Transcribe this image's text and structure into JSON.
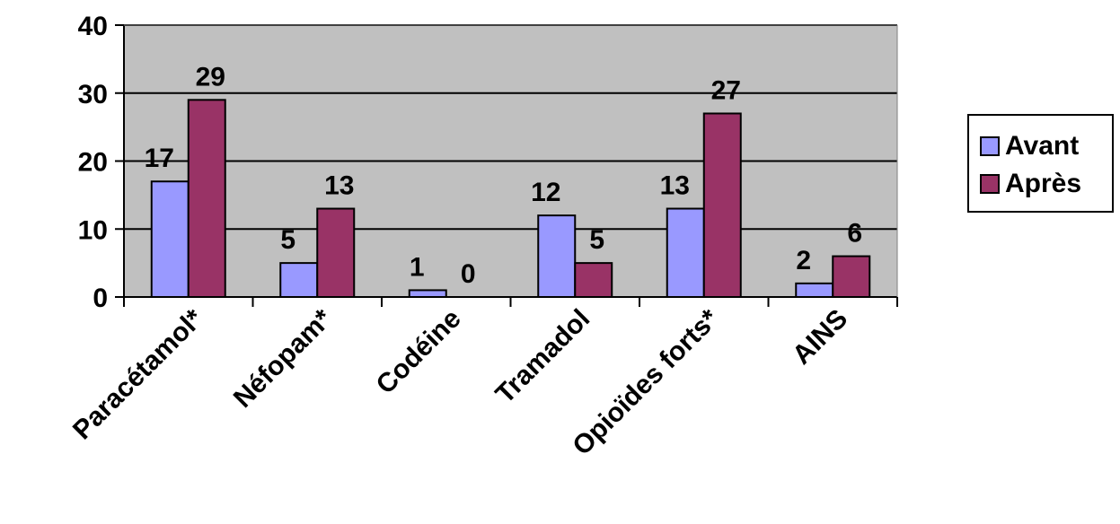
{
  "chart_data": {
    "type": "bar",
    "categories": [
      "Paracétamol*",
      "Néfopam*",
      "Codéine",
      "Tramadol",
      "Opioïdes forts*",
      "AINS"
    ],
    "series": [
      {
        "name": "Avant",
        "values": [
          17,
          5,
          1,
          12,
          13,
          2
        ],
        "color": "#9999FF"
      },
      {
        "name": "Après",
        "values": [
          29,
          13,
          0,
          5,
          27,
          6
        ],
        "color": "#993366"
      }
    ],
    "yticks": [
      "0",
      "10",
      "20",
      "30",
      "40"
    ],
    "ylim": [
      0,
      40
    ],
    "grid": true,
    "legend": "right",
    "plot_background": "#C0C0C0"
  }
}
